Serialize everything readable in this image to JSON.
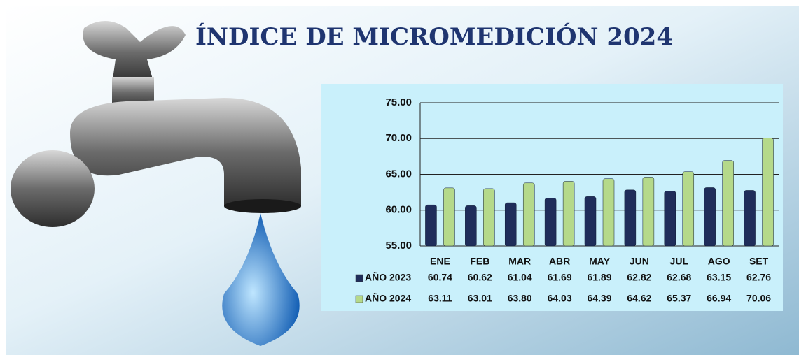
{
  "chart_data": {
    "type": "bar",
    "title": "ÍNDICE DE MICROMEDICIÓN 2024",
    "categories": [
      "ENE",
      "FEB",
      "MAR",
      "ABR",
      "MAY",
      "JUN",
      "JUL",
      "AGO",
      "SET"
    ],
    "series": [
      {
        "name": "AÑO 2023",
        "color": "#1f2d5a",
        "values": [
          60.74,
          60.62,
          61.04,
          61.69,
          61.89,
          62.82,
          62.68,
          63.15,
          62.76
        ],
        "value_labels": [
          "60.74",
          "60.62",
          "61.04",
          "61.69",
          "61.89",
          "62.82",
          "62.68",
          "63.15",
          "62.76"
        ]
      },
      {
        "name": "AÑO 2024",
        "color": "#b5d98a",
        "values": [
          63.11,
          63.01,
          63.8,
          64.03,
          64.39,
          64.62,
          65.37,
          66.94,
          70.06
        ],
        "value_labels": [
          "63.11",
          "63.01",
          "63.80",
          "64.03",
          "64.39",
          "64.62",
          "65.37",
          "66.94",
          "70.06"
        ]
      }
    ],
    "ylim": [
      55,
      75
    ],
    "yticks": [
      {
        "value": 55,
        "label": "55.00"
      },
      {
        "value": 60,
        "label": "60.00"
      },
      {
        "value": 65,
        "label": "65.00"
      },
      {
        "value": 70,
        "label": "70.00"
      },
      {
        "value": 75,
        "label": "75.00"
      }
    ],
    "grid": true
  }
}
